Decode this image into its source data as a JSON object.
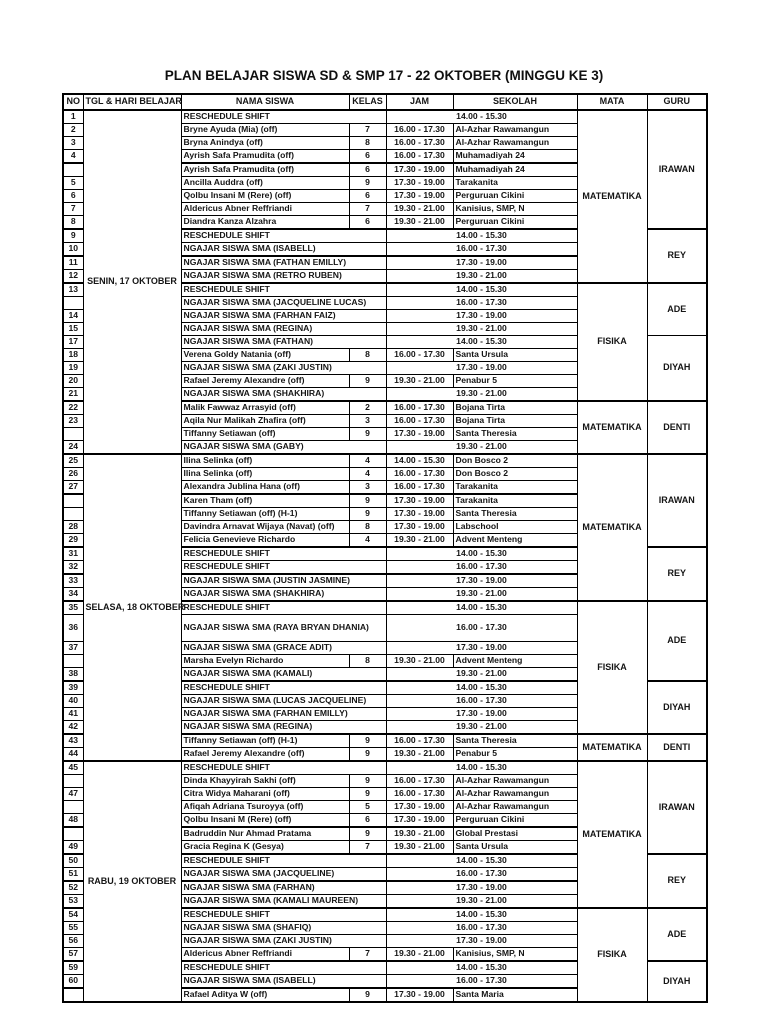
{
  "title": "PLAN BELAJAR SISWA SD & SMP 17 - 22 OKTOBER (MINGGU KE 3)",
  "columns": [
    "NO",
    "TGL & HARI  BELAJAR",
    "NAMA SISWA",
    "KELAS",
    "JAM",
    "SEKOLAH",
    "MATA",
    "GURU"
  ],
  "sections": [
    {
      "day": "SENIN, 17 OKTOBER",
      "rows": [
        {
          "no": "1",
          "type": "m",
          "nama": "RESCHEDULE SHIFT",
          "jam": "14.00 - 15.30"
        },
        {
          "no": "2",
          "type": "d",
          "nama": "Bryne Ayuda (Mia) (off)",
          "kelas": "7",
          "jam": "16.00 - 17.30",
          "sekolah": "Al-Azhar Rawamangun"
        },
        {
          "no": "3",
          "type": "d",
          "nama": "Bryna Anindya (off)",
          "kelas": "8",
          "jam": "16.00 - 17.30",
          "sekolah": "Al-Azhar Rawamangun"
        },
        {
          "no": "4",
          "type": "d",
          "nama": "Ayrish Safa Pramudita (off)",
          "kelas": "6",
          "jam": "16.00 - 17.30",
          "sekolah": "Muhamadiyah 24"
        },
        {
          "no": "",
          "type": "d",
          "nama": "Ayrish Safa Pramudita (off)",
          "kelas": "6",
          "jam": "17.30 - 19.00",
          "sekolah": "Muhamadiyah 24",
          "thick": true
        },
        {
          "no": "5",
          "type": "d",
          "nama": "Ancilla Auddra (off)",
          "kelas": "9",
          "jam": "17.30 - 19.00",
          "sekolah": "Tarakanita"
        },
        {
          "no": "6",
          "type": "d",
          "nama": "Qolbu Insani M (Rere) (off)",
          "kelas": "6",
          "jam": "17.30 - 19.00",
          "sekolah": "Perguruan Cikini"
        },
        {
          "no": "7",
          "type": "d",
          "nama": "Aldericus Abner Reffriandi",
          "kelas": "7",
          "jam": "19.30 - 21.00",
          "sekolah": "Kanisius, SMP, N"
        },
        {
          "no": "8",
          "type": "d",
          "nama": "Diandra Kanza Alzahra",
          "kelas": "6",
          "jam": "19.30 - 21.00",
          "sekolah": "Perguruan Cikini"
        },
        {
          "no": "9",
          "type": "m",
          "nama": "RESCHEDULE SHIFT",
          "jam": "14.00 - 15.30",
          "thick": true
        },
        {
          "no": "10",
          "type": "m",
          "nama": "NGAJAR SISWA SMA (ISABELL)",
          "jam": "16.00 - 17.30"
        },
        {
          "no": "11",
          "type": "m",
          "nama": "NGAJAR SISWA SMA (FATHAN EMILLY)",
          "jam": "17.30 - 19.00",
          "thick": true
        },
        {
          "no": "12",
          "type": "m",
          "nama": "NGAJAR SISWA SMA (RETRO RUBEN)",
          "jam": "19.30 - 21.00"
        },
        {
          "no": "13",
          "type": "m",
          "nama": "RESCHEDULE SHIFT",
          "jam": "14.00 - 15.30",
          "thick": true
        },
        {
          "no": "",
          "type": "m",
          "nama": "NGAJAR SISWA SMA (JACQUELINE LUCAS)",
          "jam": "16.00 - 17.30"
        },
        {
          "no": "14",
          "type": "m",
          "nama": "NGAJAR SISWA SMA (FARHAN FAIZ)",
          "jam": "17.30 - 19.00"
        },
        {
          "no": "15",
          "type": "m",
          "nama": "NGAJAR SISWA SMA (REGINA)",
          "jam": "19.30 - 21.00"
        },
        {
          "no": "17",
          "type": "m",
          "nama": "NGAJAR SISWA SMA (FATHAN)",
          "jam": "14.00 - 15.30"
        },
        {
          "no": "18",
          "type": "d",
          "nama": "Verena Goldy Natania (off)",
          "kelas": "8",
          "jam": "16.00 - 17.30",
          "sekolah": "Santa Ursula"
        },
        {
          "no": "19",
          "type": "m",
          "nama": "NGAJAR SISWA SMA (ZAKI JUSTIN)",
          "jam": "17.30 - 19.00"
        },
        {
          "no": "20",
          "type": "d",
          "nama": "Rafael Jeremy Alexandre (off)",
          "kelas": "9",
          "jam": "19.30 - 21.00",
          "sekolah": "Penabur 5"
        },
        {
          "no": "21",
          "type": "m",
          "nama": "NGAJAR SISWA SMA (SHAKHIRA)",
          "jam": "19.30 - 21.00"
        },
        {
          "no": "22",
          "type": "d",
          "nama": "Malik Fawwaz Arrasyid (off)",
          "kelas": "2",
          "jam": "16.00 - 17.30",
          "sekolah": "Bojana Tirta",
          "yellow": true,
          "thick": true
        },
        {
          "no": "23",
          "type": "d",
          "nama": "Aqila Nur Malikah Zhafira (off)",
          "kelas": "3",
          "jam": "16.00 - 17.30",
          "sekolah": "Bojana Tirta",
          "yellow": true
        },
        {
          "no": "",
          "type": "d",
          "nama": "Tiffanny Setiawan (off)",
          "kelas": "9",
          "jam": "17.30 - 19.00",
          "sekolah": "Santa Theresia",
          "yellow": true
        },
        {
          "no": "24",
          "type": "m",
          "nama": "NGAJAR SISWA SMA (GABY)",
          "jam": "19.30 - 21.00",
          "yellow": true
        }
      ],
      "mata_spans": [
        {
          "label": "MATEMATIKA",
          "rows": 13
        },
        {
          "label": "FISIKA",
          "rows": 9
        },
        {
          "label": "MATEMATIKA",
          "rows": 4,
          "yellow": true
        }
      ],
      "guru_spans": [
        {
          "label": "IRAWAN",
          "rows": 9
        },
        {
          "label": "REY",
          "rows": 4
        },
        {
          "label": "ADE",
          "rows": 4
        },
        {
          "label": "DIYAH",
          "rows": 5
        },
        {
          "label": "DENTI",
          "rows": 4,
          "yellow": true
        }
      ]
    },
    {
      "day": "SELASA, 18 OKTOBER",
      "rows": [
        {
          "no": "25",
          "type": "d",
          "nama": "Ilina Selinka (off)",
          "kelas": "4",
          "jam": "14.00 - 15.30",
          "sekolah": "Don Bosco 2"
        },
        {
          "no": "26",
          "type": "d",
          "nama": "Ilina Selinka (off)",
          "kelas": "4",
          "jam": "16.00 - 17.30",
          "sekolah": "Don Bosco 2"
        },
        {
          "no": "27",
          "type": "d",
          "nama": "Alexandra Jublina Hana (off)",
          "kelas": "3",
          "jam": "16.00 - 17.30",
          "sekolah": "Tarakanita"
        },
        {
          "no": "",
          "type": "d",
          "nama": "Karen Tham (off)",
          "kelas": "9",
          "jam": "17.30 - 19.00",
          "sekolah": "Tarakanita",
          "thick": true
        },
        {
          "no": "",
          "type": "d",
          "nama": "Tiffanny Setiawan (off) (H-1)",
          "kelas": "9",
          "jam": "17.30 - 19.00",
          "sekolah": "Santa Theresia"
        },
        {
          "no": "28",
          "type": "d",
          "nama": "Davindra Arnavat Wijaya (Navat) (off)",
          "kelas": "8",
          "jam": "17.30 - 19.00",
          "sekolah": "Labschool"
        },
        {
          "no": "29",
          "type": "d",
          "nama": "Felicia Genevieve Richardo",
          "kelas": "4",
          "jam": "19.30 - 21.00",
          "sekolah": "Advent Menteng"
        },
        {
          "no": "31",
          "type": "m",
          "nama": "RESCHEDULE SHIFT",
          "jam": "14.00 - 15.30",
          "thick": true
        },
        {
          "no": "32",
          "type": "m",
          "nama": "RESCHEDULE SHIFT",
          "jam": "16.00 - 17.30"
        },
        {
          "no": "33",
          "type": "m",
          "nama": "NGAJAR SISWA SMA (JUSTIN JASMINE)",
          "jam": "17.30 - 19.00",
          "thick": true
        },
        {
          "no": "34",
          "type": "m",
          "nama": "NGAJAR SISWA SMA (SHAKHIRA)",
          "jam": "19.30 - 21.00"
        },
        {
          "no": "35",
          "type": "m",
          "nama": "RESCHEDULE SHIFT",
          "jam": "14.00 - 15.30",
          "thick": true
        },
        {
          "no": "36",
          "type": "m",
          "nama": "NGAJAR SISWA SMA (RAYA BRYAN DHANIA)",
          "jam": "16.00 - 17.30",
          "tall": true
        },
        {
          "no": "37",
          "type": "m",
          "nama": "NGAJAR SISWA SMA (GRACE ADIT)",
          "jam": "17.30 - 19.00"
        },
        {
          "no": "",
          "type": "d",
          "nama": "Marsha Evelyn Richardo",
          "kelas": "8",
          "jam": "19.30 - 21.00",
          "sekolah": "Advent Menteng"
        },
        {
          "no": "38",
          "type": "m",
          "nama": "NGAJAR SISWA SMA (KAMALI)",
          "jam": "19.30 - 21.00"
        },
        {
          "no": "39",
          "type": "m",
          "nama": "RESCHEDULE SHIFT",
          "jam": "14.00 - 15.30",
          "thick": true
        },
        {
          "no": "40",
          "type": "m",
          "nama": "NGAJAR SISWA SMA (LUCAS JACQUELINE)",
          "jam": "16.00 - 17.30"
        },
        {
          "no": "41",
          "type": "m",
          "nama": "NGAJAR SISWA SMA (FARHAN EMILLY)",
          "jam": "17.30 - 19.00"
        },
        {
          "no": "42",
          "type": "m",
          "nama": "NGAJAR SISWA SMA (REGINA)",
          "jam": "19.30 - 21.00"
        },
        {
          "no": "43",
          "type": "d",
          "nama": "Tiffanny Setiawan (off)  (H-1)",
          "kelas": "9",
          "jam": "16.00 - 17.30",
          "sekolah": "Santa Theresia",
          "yellow": true,
          "thick": true
        },
        {
          "no": "44",
          "type": "d",
          "nama": "Rafael Jeremy Alexandre (off)",
          "kelas": "9",
          "jam": "19.30 - 21.00",
          "sekolah": "Penabur 5",
          "yellow": true
        }
      ],
      "mata_spans": [
        {
          "label": "MATEMATIKA",
          "rows": 11
        },
        {
          "label": "FISIKA",
          "rows": 9
        },
        {
          "label": "MATEMATIKA",
          "rows": 2,
          "yellow": true
        }
      ],
      "guru_spans": [
        {
          "label": "IRAWAN",
          "rows": 7
        },
        {
          "label": "REY",
          "rows": 4
        },
        {
          "label": "ADE",
          "rows": 5
        },
        {
          "label": "DIYAH",
          "rows": 4
        },
        {
          "label": "DENTI",
          "rows": 2,
          "yellow": true
        }
      ]
    },
    {
      "day": "RABU, 19 OKTOBER",
      "rows": [
        {
          "no": "45",
          "type": "m",
          "nama": "RESCHEDULE SHIFT",
          "jam": "14.00 - 15.30"
        },
        {
          "no": "",
          "type": "d",
          "nama": "Dinda Khayyirah Sakhi (off)",
          "kelas": "9",
          "jam": "16.00 - 17.30",
          "sekolah": "Al-Azhar Rawamangun"
        },
        {
          "no": "47",
          "type": "d",
          "nama": "Citra Widya Maharani (off)",
          "kelas": "9",
          "jam": "16.00 - 17.30",
          "sekolah": "Al-Azhar Rawamangun"
        },
        {
          "no": "",
          "type": "d",
          "nama": "Afiqah Adriana Tsuroyya (off)",
          "kelas": "5",
          "jam": "17.30 - 19.00",
          "sekolah": "Al-Azhar Rawamangun"
        },
        {
          "no": "48",
          "type": "d",
          "nama": "Qolbu Insani M (Rere) (off)",
          "kelas": "6",
          "jam": "17.30 - 19.00",
          "sekolah": "Perguruan Cikini"
        },
        {
          "no": "",
          "type": "d",
          "nama": "Badruddin Nur Ahmad Pratama",
          "kelas": "9",
          "jam": "19.30 - 21.00",
          "sekolah": "Global Prestasi",
          "thick": true
        },
        {
          "no": "49",
          "type": "d",
          "nama": "Gracia Regina K (Gesya)",
          "kelas": "7",
          "jam": "19.30 - 21.00",
          "sekolah": "Santa Ursula"
        },
        {
          "no": "50",
          "type": "m",
          "nama": "RESCHEDULE SHIFT",
          "jam": "14.00 - 15.30",
          "thick": true
        },
        {
          "no": "51",
          "type": "m",
          "nama": "NGAJAR SISWA SMA (JACQUELINE)",
          "jam": "16.00 - 17.30"
        },
        {
          "no": "52",
          "type": "m",
          "nama": "NGAJAR SISWA SMA (FARHAN)",
          "jam": "17.30 - 19.00",
          "thick": true
        },
        {
          "no": "53",
          "type": "m",
          "nama": "NGAJAR SISWA SMA (KAMALI MAUREEN)",
          "jam": "19.30 - 21.00"
        },
        {
          "no": "54",
          "type": "m",
          "nama": "RESCHEDULE SHIFT",
          "jam": "14.00 - 15.30",
          "thick": true
        },
        {
          "no": "55",
          "type": "m",
          "nama": "NGAJAR SISWA SMA (SHAFIQ)",
          "jam": "16.00 - 17.30"
        },
        {
          "no": "56",
          "type": "m",
          "nama": "NGAJAR SISWA SMA (ZAKI JUSTIN)",
          "jam": "17.30 - 19.00"
        },
        {
          "no": "57",
          "type": "d",
          "nama": "Aldericus Abner Reffriandi",
          "kelas": "7",
          "jam": "19.30 - 21.00",
          "sekolah": "Kanisius, SMP, N"
        },
        {
          "no": "59",
          "type": "m",
          "nama": "RESCHEDULE SHIFT",
          "jam": "14.00 - 15.30",
          "thick": true
        },
        {
          "no": "60",
          "type": "m",
          "nama": "NGAJAR SISWA SMA (ISABELL)",
          "jam": "16.00 - 17.30"
        },
        {
          "no": "",
          "type": "d",
          "nama": "Rafael Aditya W (off)",
          "kelas": "9",
          "jam": "17.30 - 19.00",
          "sekolah": "Santa Maria",
          "thick": true
        }
      ],
      "mata_spans": [
        {
          "label": "MATEMATIKA",
          "rows": 11
        },
        {
          "label": "FISIKA",
          "rows": 7
        }
      ],
      "guru_spans": [
        {
          "label": "IRAWAN",
          "rows": 7
        },
        {
          "label": "REY",
          "rows": 4
        },
        {
          "label": "ADE",
          "rows": 4
        },
        {
          "label": "DIYAH",
          "rows": 3
        }
      ]
    }
  ],
  "highlight_color": "#ffff00"
}
